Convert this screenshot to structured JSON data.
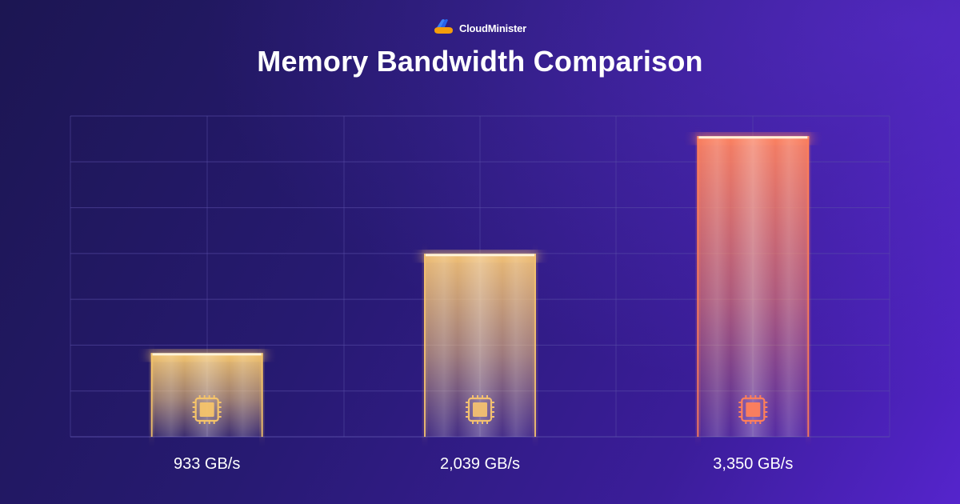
{
  "brand": {
    "name": "CloudMinister",
    "logo_icon": "cloud-logo-icon"
  },
  "chart_data": {
    "type": "bar",
    "title": "Memory Bandwidth Comparison",
    "xlabel": "",
    "ylabel": "",
    "categories": [
      "",
      "",
      ""
    ],
    "values": [
      933,
      2039,
      3350
    ],
    "value_labels": [
      "933 GB/s",
      "2,039 GB/s",
      "3,350 GB/s"
    ],
    "unit": "GB/s",
    "ylim": [
      0,
      3575
    ],
    "grid": true,
    "legend": "none",
    "bar_icon": "cpu-chip-icon",
    "colors": [
      "#f5c46a",
      "#f3c070",
      "#ff7f5a"
    ]
  },
  "colors": {
    "background_start": "#1c1652",
    "background_end": "#5524cc",
    "gridline": "#5a4fa8",
    "text": "#ffffff"
  }
}
